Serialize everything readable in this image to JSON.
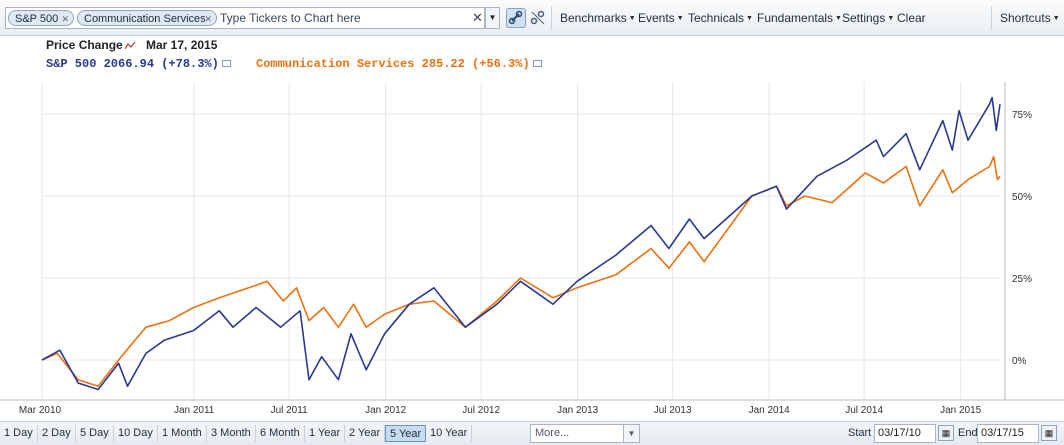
{
  "toolbar": {
    "tickers": [
      "S&P 500",
      "Communication Services"
    ],
    "placeholder": "Type Tickers to Chart here",
    "menus": [
      "Benchmarks",
      "Events",
      "Technicals",
      "Fundamentals",
      "Settings"
    ],
    "clear_label": "Clear",
    "shortcuts_label": "Shortcuts"
  },
  "legend": {
    "title": "Price Change",
    "date": "Mar 17, 2015",
    "series": [
      {
        "label": "S&P 500 2066.94 (+78.3%)",
        "color": "#2a3990"
      },
      {
        "label": "Communication Services 285.22 (+56.3%)",
        "color": "#f07010"
      }
    ]
  },
  "chart_data": {
    "type": "line",
    "x_ticks": [
      "Mar 2010",
      "Jan 2011",
      "Jul 2011",
      "Jan 2012",
      "Jul 2012",
      "Jan 2013",
      "Jul 2013",
      "Jan 2014",
      "Jul 2014",
      "Jan 2015"
    ],
    "y_ticks": [
      "75%",
      "50%",
      "25%",
      "0%"
    ],
    "ylim": [
      -12,
      85
    ],
    "grid": true,
    "series": [
      {
        "name": "S&P 500",
        "color": "#2a3990",
        "points": [
          [
            "2010-03-17",
            0
          ],
          [
            "2010-04-20",
            3
          ],
          [
            "2010-05-25",
            -7
          ],
          [
            "2010-07-02",
            -9
          ],
          [
            "2010-08-10",
            -1
          ],
          [
            "2010-08-27",
            -8
          ],
          [
            "2010-10-01",
            2
          ],
          [
            "2010-11-05",
            6
          ],
          [
            "2010-12-31",
            9
          ],
          [
            "2011-02-18",
            15
          ],
          [
            "2011-03-16",
            10
          ],
          [
            "2011-04-29",
            16
          ],
          [
            "2011-06-15",
            10
          ],
          [
            "2011-07-22",
            15
          ],
          [
            "2011-08-08",
            -6
          ],
          [
            "2011-09-01",
            1
          ],
          [
            "2011-10-03",
            -6
          ],
          [
            "2011-10-27",
            8
          ],
          [
            "2011-11-25",
            -3
          ],
          [
            "2011-12-30",
            8
          ],
          [
            "2012-02-15",
            17
          ],
          [
            "2012-04-02",
            22
          ],
          [
            "2012-06-01",
            10
          ],
          [
            "2012-07-31",
            17
          ],
          [
            "2012-09-14",
            24
          ],
          [
            "2012-11-15",
            17
          ],
          [
            "2012-12-31",
            24
          ],
          [
            "2013-03-15",
            32
          ],
          [
            "2013-05-21",
            41
          ],
          [
            "2013-06-24",
            34
          ],
          [
            "2013-08-02",
            43
          ],
          [
            "2013-08-30",
            37
          ],
          [
            "2013-11-29",
            50
          ],
          [
            "2014-01-15",
            53
          ],
          [
            "2014-02-03",
            46
          ],
          [
            "2014-04-02",
            56
          ],
          [
            "2014-05-30",
            61
          ],
          [
            "2014-07-24",
            67
          ],
          [
            "2014-08-07",
            62
          ],
          [
            "2014-09-19",
            69
          ],
          [
            "2014-10-15",
            58
          ],
          [
            "2014-11-28",
            73
          ],
          [
            "2014-12-16",
            64
          ],
          [
            "2014-12-29",
            76
          ],
          [
            "2015-01-15",
            67
          ],
          [
            "2015-02-25",
            78
          ],
          [
            "2015-03-02",
            80
          ],
          [
            "2015-03-10",
            70
          ],
          [
            "2015-03-17",
            78
          ]
        ]
      },
      {
        "name": "Communication Services",
        "color": "#f07010",
        "points": [
          [
            "2010-03-17",
            0
          ],
          [
            "2010-04-15",
            2
          ],
          [
            "2010-05-25",
            -6
          ],
          [
            "2010-07-02",
            -8
          ],
          [
            "2010-08-15",
            1
          ],
          [
            "2010-10-01",
            10
          ],
          [
            "2010-11-15",
            12
          ],
          [
            "2010-12-31",
            16
          ],
          [
            "2011-02-18",
            19
          ],
          [
            "2011-04-15",
            22
          ],
          [
            "2011-05-20",
            24
          ],
          [
            "2011-06-20",
            18
          ],
          [
            "2011-07-15",
            22
          ],
          [
            "2011-08-08",
            12
          ],
          [
            "2011-09-05",
            16
          ],
          [
            "2011-10-03",
            10
          ],
          [
            "2011-11-01",
            17
          ],
          [
            "2011-11-25",
            10
          ],
          [
            "2011-12-30",
            14
          ],
          [
            "2012-02-15",
            17
          ],
          [
            "2012-04-02",
            18
          ],
          [
            "2012-06-01",
            10
          ],
          [
            "2012-07-31",
            18
          ],
          [
            "2012-09-14",
            25
          ],
          [
            "2012-11-15",
            19
          ],
          [
            "2012-12-31",
            22
          ],
          [
            "2013-03-15",
            26
          ],
          [
            "2013-05-21",
            34
          ],
          [
            "2013-06-24",
            28
          ],
          [
            "2013-08-02",
            36
          ],
          [
            "2013-08-30",
            30
          ],
          [
            "2013-11-29",
            50
          ],
          [
            "2014-01-15",
            53
          ],
          [
            "2014-02-03",
            47
          ],
          [
            "2014-03-10",
            50
          ],
          [
            "2014-05-01",
            48
          ],
          [
            "2014-07-03",
            57
          ],
          [
            "2014-08-07",
            54
          ],
          [
            "2014-09-19",
            59
          ],
          [
            "2014-10-15",
            47
          ],
          [
            "2014-11-28",
            58
          ],
          [
            "2014-12-16",
            51
          ],
          [
            "2015-01-15",
            55
          ],
          [
            "2015-02-25",
            59
          ],
          [
            "2015-03-05",
            62
          ],
          [
            "2015-03-12",
            55
          ],
          [
            "2015-03-17",
            56
          ]
        ]
      }
    ]
  },
  "ranges": [
    "1 Day",
    "2 Day",
    "5 Day",
    "10 Day",
    "1 Month",
    "3 Month",
    "6 Month",
    "1 Year",
    "2 Year",
    "5 Year",
    "10 Year"
  ],
  "active_range": "5 Year",
  "more_label": "More...",
  "start": {
    "label": "Start",
    "value": "03/17/10"
  },
  "end": {
    "label": "End",
    "value": "03/17/15"
  }
}
